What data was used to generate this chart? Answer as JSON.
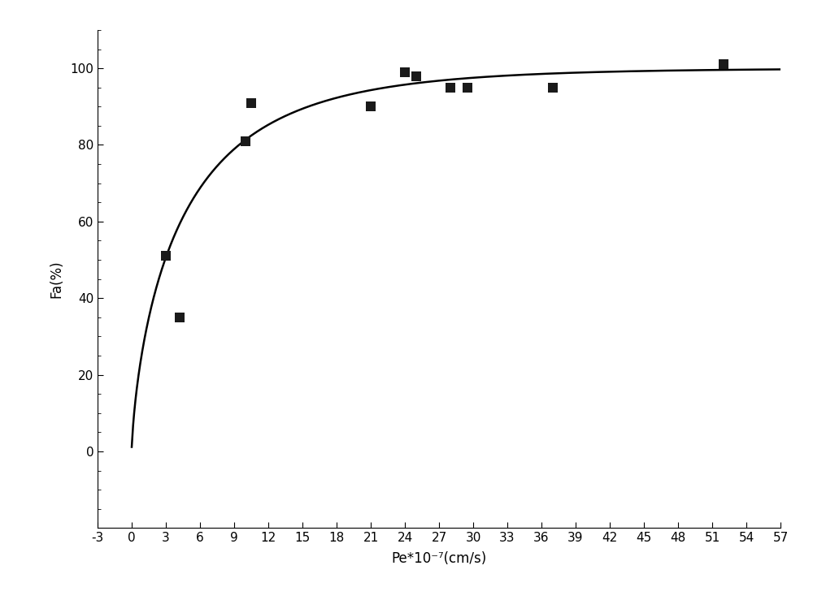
{
  "scatter_x": [
    3.0,
    4.2,
    10.0,
    10.5,
    21.0,
    24.0,
    25.0,
    28.0,
    29.5,
    37.0,
    52.0
  ],
  "scatter_y": [
    51,
    35,
    81,
    91,
    90,
    99,
    98,
    95,
    95,
    95,
    101
  ],
  "xlim": [
    -3,
    57
  ],
  "ylim": [
    -20,
    110
  ],
  "xticks": [
    -3,
    0,
    3,
    6,
    9,
    12,
    15,
    18,
    21,
    24,
    27,
    30,
    33,
    36,
    39,
    42,
    45,
    48,
    51,
    54,
    57
  ],
  "yticks": [
    0,
    20,
    40,
    60,
    80,
    100
  ],
  "xlabel": "Pe*10⁻⁷(cm/s)",
  "ylabel": "Fa(%)",
  "scatter_color": "#1a1a1a",
  "line_color": "#000000",
  "bg_color": "#ffffff",
  "marker_size": 8,
  "line_width": 1.8,
  "curve_k": 0.32,
  "curve_n": 0.72,
  "curve_scale": 100.0,
  "fig_width": 10.0,
  "fig_height": 7.39,
  "fig_dpi": 100
}
